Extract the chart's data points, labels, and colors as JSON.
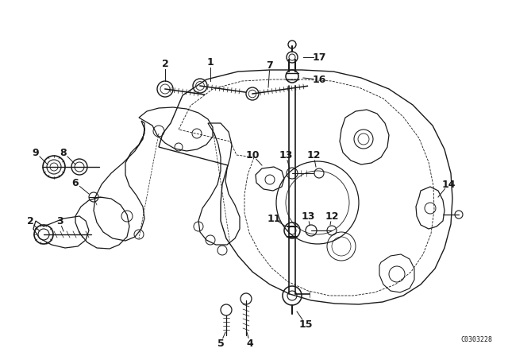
{
  "bg_color": "#ffffff",
  "line_color": "#1a1a1a",
  "fig_width": 6.4,
  "fig_height": 4.48,
  "dpi": 100,
  "watermark": "C0303228",
  "title_color": "#000000"
}
